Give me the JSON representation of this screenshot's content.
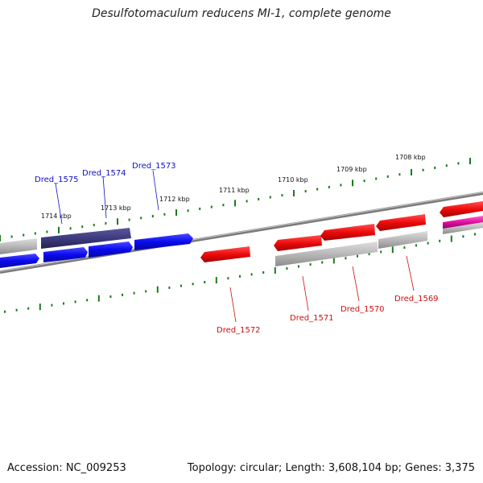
{
  "title": "Desulfotomaculum reducens MI-1, complete genome",
  "footer": {
    "accession": "Accession: NC_009253",
    "summary": "Topology: circular; Length: 3,608,104 bp; Genes: 3,375"
  },
  "colors": {
    "forward_gene": "#0a0aee",
    "forward_selected": "#3d3a80",
    "reverse_gene": "#ee0a0a",
    "other_gene": "#b8b8b8",
    "rna_gene": "#e010a0",
    "ticks": "#1a7a1a",
    "backbone": "#808080"
  },
  "ticks": [
    "1714 kbp",
    "1713 kbp",
    "1712 kbp",
    "1711 kbp",
    "1710 kbp",
    "1709 kbp",
    "1708 kbp"
  ],
  "labels": {
    "forward": [
      "Dred_1575",
      "Dred_1574",
      "Dred_1573"
    ],
    "reverse": [
      "Dred_1572",
      "Dred_1571",
      "Dred_1570",
      "Dred_1569"
    ]
  }
}
